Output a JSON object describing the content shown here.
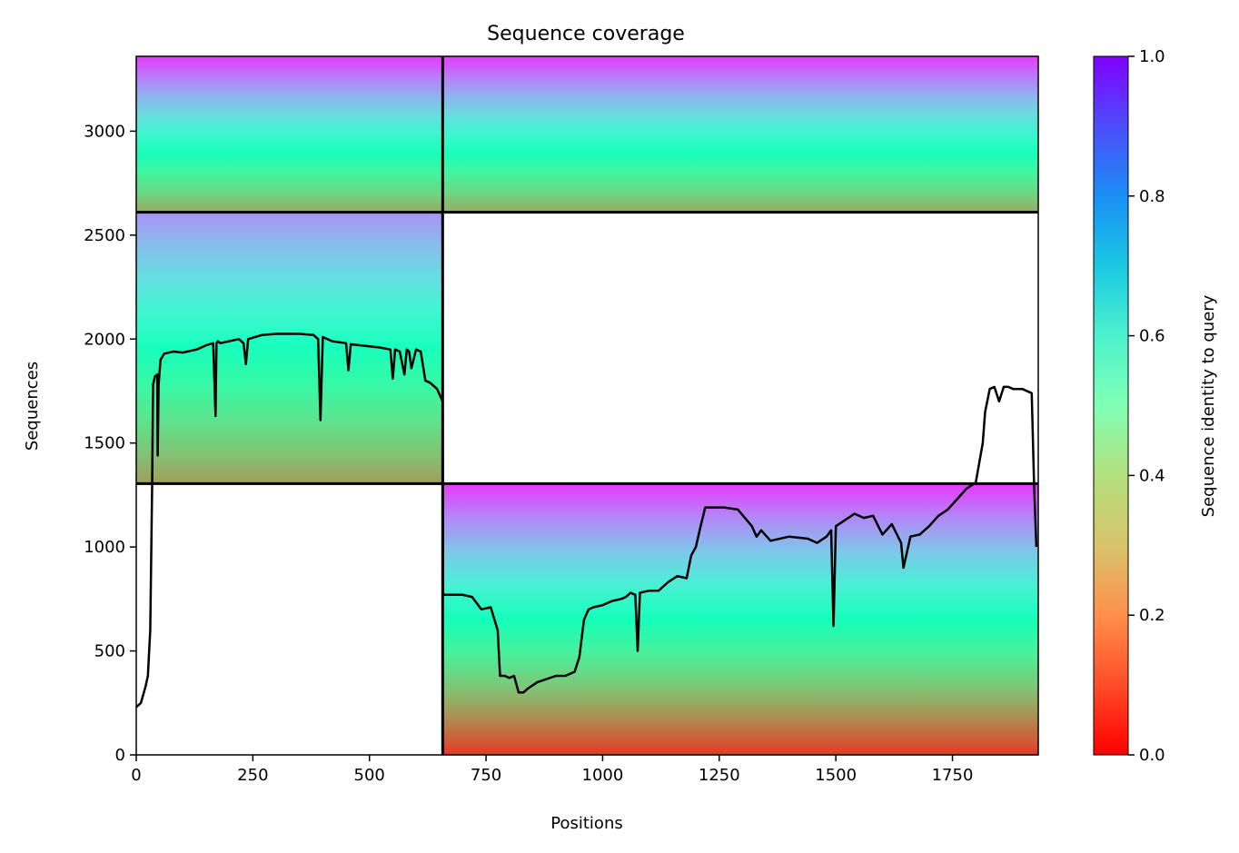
{
  "chart_data": {
    "type": "heatmap",
    "title": "Sequence coverage",
    "xlabel": "Positions",
    "ylabel": "Sequences",
    "xlim": [
      0,
      1934
    ],
    "ylim": [
      0,
      3360
    ],
    "xticks": [
      0,
      250,
      500,
      750,
      1000,
      1250,
      1500,
      1750
    ],
    "yticks": [
      0,
      500,
      1000,
      1500,
      2000,
      2500,
      3000
    ],
    "colorbar": {
      "label": "Sequence identity to query",
      "colormap": "rainbow_r",
      "ticks": [
        0.0,
        0.2,
        0.4,
        0.6,
        0.8,
        1.0
      ],
      "tick_labels": [
        "0.0",
        "0.2",
        "0.4",
        "0.6",
        "0.8",
        "1.0"
      ],
      "range": [
        0.0,
        1.0
      ]
    },
    "chain_boundaries": {
      "x": [
        657
      ],
      "y": [
        1305,
        2610
      ]
    },
    "coverage_blocks": [
      {
        "x": [
          0,
          657
        ],
        "y": [
          2610,
          3360
        ],
        "identity_top": 0.95,
        "identity_bottom": 0.22
      },
      {
        "x": [
          657,
          1934
        ],
        "y": [
          2610,
          3360
        ],
        "identity_top": 0.95,
        "identity_bottom": 0.22
      },
      {
        "x": [
          0,
          657
        ],
        "y": [
          1305,
          2610
        ],
        "identity_top": 0.82,
        "identity_bottom": 0.2
      },
      {
        "x": [
          657,
          1934
        ],
        "y": [
          1305,
          2610
        ],
        "identity_top": null,
        "identity_bottom": null
      },
      {
        "x": [
          0,
          657
        ],
        "y": [
          0,
          1305
        ],
        "identity_top": null,
        "identity_bottom": null
      },
      {
        "x": [
          657,
          1934
        ],
        "y": [
          0,
          1305
        ],
        "identity_top": 0.95,
        "identity_bottom": 0.05
      }
    ],
    "coverage_line": {
      "color": "#000000",
      "x": [
        0,
        10,
        20,
        25,
        30,
        34,
        36,
        40,
        45,
        46,
        48,
        52,
        60,
        80,
        100,
        130,
        150,
        165,
        170,
        172,
        175,
        180,
        220,
        230,
        235,
        240,
        270,
        300,
        350,
        380,
        390,
        395,
        400,
        420,
        450,
        455,
        460,
        480,
        520,
        545,
        550,
        555,
        565,
        575,
        580,
        585,
        590,
        600,
        610,
        620,
        630,
        645,
        657,
        658,
        700,
        720,
        740,
        760,
        775,
        780,
        790,
        800,
        810,
        820,
        830,
        840,
        860,
        900,
        920,
        940,
        950,
        960,
        970,
        980,
        1000,
        1020,
        1040,
        1050,
        1060,
        1070,
        1075,
        1080,
        1100,
        1120,
        1140,
        1160,
        1180,
        1190,
        1200,
        1210,
        1220,
        1240,
        1260,
        1290,
        1320,
        1330,
        1340,
        1360,
        1400,
        1440,
        1460,
        1480,
        1490,
        1495,
        1500,
        1520,
        1540,
        1560,
        1580,
        1600,
        1620,
        1640,
        1645,
        1660,
        1680,
        1700,
        1720,
        1740,
        1760,
        1780,
        1800,
        1815,
        1820,
        1830,
        1840,
        1850,
        1860,
        1870,
        1880,
        1900,
        1920,
        1925,
        1930
      ],
      "y": [
        230,
        250,
        330,
        380,
        600,
        1300,
        1780,
        1820,
        1830,
        1440,
        1780,
        1900,
        1930,
        1940,
        1935,
        1950,
        1970,
        1980,
        1630,
        1980,
        1990,
        1980,
        2000,
        1980,
        1880,
        2000,
        2020,
        2025,
        2025,
        2020,
        2000,
        1610,
        2010,
        1990,
        1980,
        1850,
        1975,
        1970,
        1960,
        1950,
        1810,
        1950,
        1940,
        1830,
        1950,
        1940,
        1860,
        1950,
        1940,
        1800,
        1790,
        1760,
        1700,
        770,
        770,
        760,
        700,
        710,
        600,
        380,
        380,
        370,
        380,
        300,
        300,
        320,
        350,
        380,
        380,
        400,
        470,
        650,
        700,
        710,
        720,
        740,
        750,
        760,
        780,
        770,
        500,
        780,
        790,
        790,
        830,
        860,
        850,
        960,
        1000,
        1100,
        1190,
        1190,
        1190,
        1180,
        1100,
        1050,
        1080,
        1030,
        1050,
        1040,
        1020,
        1050,
        1080,
        620,
        1100,
        1130,
        1160,
        1140,
        1150,
        1060,
        1110,
        1020,
        900,
        1050,
        1060,
        1100,
        1150,
        1180,
        1230,
        1280,
        1310,
        1500,
        1650,
        1760,
        1770,
        1700,
        1770,
        1770,
        1760,
        1760,
        1740,
        1300,
        1000
      ]
    }
  }
}
